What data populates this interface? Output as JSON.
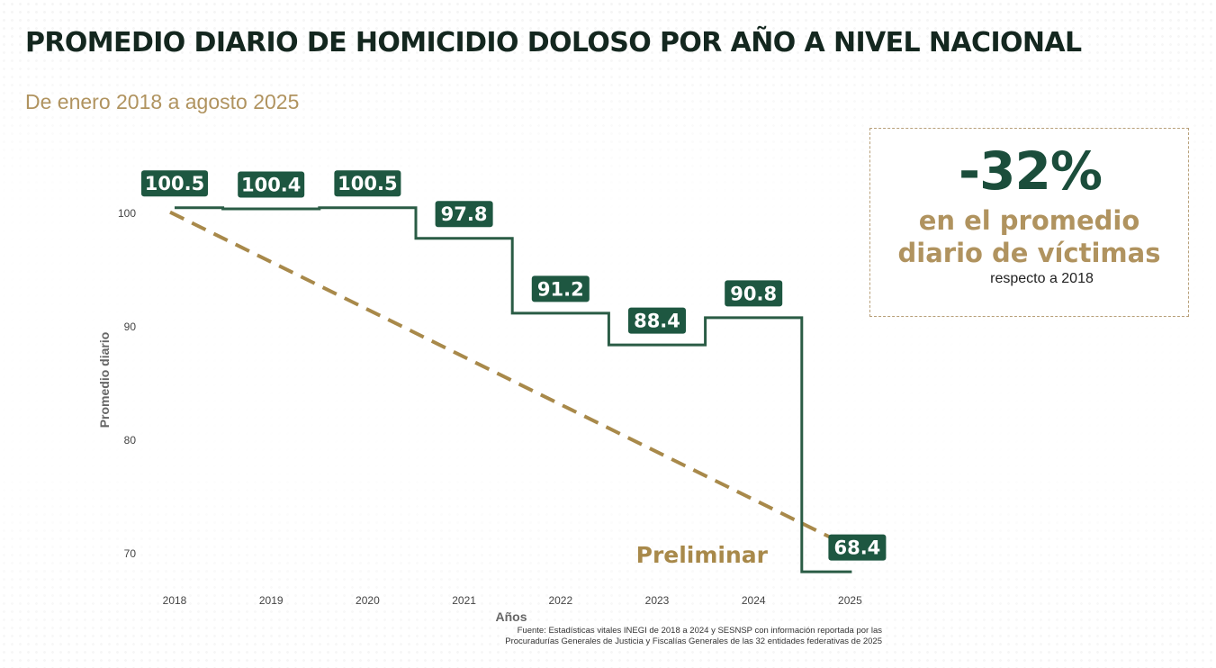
{
  "header": {
    "title": "PROMEDIO DIARIO DE HOMICIDIO DOLOSO POR AÑO A NIVEL NACIONAL",
    "subtitle": "De enero 2018 a agosto 2025"
  },
  "callout": {
    "percent": "-32%",
    "line1": "en el promedio",
    "line2": "diario de víctimas",
    "line3": "respecto a 2018"
  },
  "annotation": {
    "preliminar": "Preliminar"
  },
  "source": {
    "line1": "Fuente: Estadísticas vitales INEGI de 2018 a 2024 y SESNSP con información reportada por las",
    "line2": "Procuradurías Generales de Justicia y Fiscalías Generales de las 32 entidades federativas de 2025"
  },
  "colors": {
    "series": "#2a5c45",
    "label_bg": "#1e5741",
    "trend": "#a8894a",
    "accent_text": "#b0935f",
    "title": "#14271f"
  },
  "chart_data": {
    "type": "line",
    "step": true,
    "categories": [
      "2018",
      "2019",
      "2020",
      "2021",
      "2022",
      "2023",
      "2024",
      "2025"
    ],
    "values": [
      100.5,
      100.4,
      100.5,
      97.8,
      91.2,
      88.4,
      90.8,
      68.4
    ],
    "value_labels": [
      "100.5",
      "100.4",
      "100.5",
      "97.8",
      "91.2",
      "88.4",
      "90.8",
      "68.4"
    ],
    "xlabel": "Años",
    "ylabel": "Promedio diario",
    "yticks": [
      70,
      80,
      90,
      100
    ],
    "ylim": [
      66.5,
      103
    ],
    "grid": false,
    "trend_arrow": {
      "from": [
        "2018",
        100.5
      ],
      "to": [
        "2025",
        68.4
      ],
      "style": "dashed"
    }
  }
}
